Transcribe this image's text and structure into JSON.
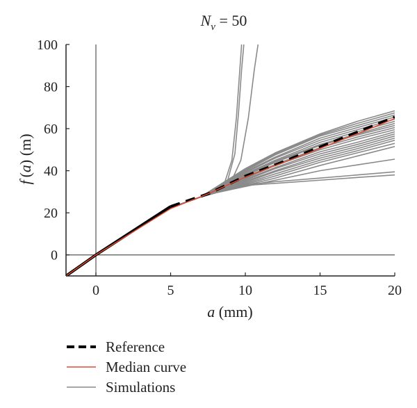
{
  "chart_data": {
    "type": "line",
    "title": {
      "italic_symbol": "N",
      "subscript": "ν",
      "rest": " = 50"
    },
    "xlabel": {
      "italic": "a",
      "rest": " (mm)"
    },
    "ylabel": {
      "italic_f": "f",
      "italic_a": "a",
      "parts": [
        "(",
        ") (m)"
      ]
    },
    "xlim": [
      -2,
      20
    ],
    "ylim": [
      -10,
      100
    ],
    "xticks": [
      0,
      5,
      10,
      15,
      20
    ],
    "yticks": [
      0,
      20,
      40,
      60,
      80,
      100
    ],
    "grid": false,
    "reference_lines": {
      "x": 0,
      "y": 0
    },
    "legend_position": "below",
    "legend": [
      "Reference",
      "Median curve",
      "Simulations"
    ],
    "colors": {
      "reference": "#000000",
      "median": "#e2492f",
      "simulations": "#8a8a8a",
      "axis": "#555555"
    },
    "series": [
      {
        "name": "Reference",
        "style": "dashed",
        "x": [
          -2,
          0,
          5,
          7.5,
          10,
          12.5,
          15,
          17.5,
          20
        ],
        "y": [
          -10,
          0,
          23,
          29,
          37.4,
          44.2,
          51.3,
          58.4,
          65.5
        ]
      },
      {
        "name": "Median curve",
        "style": "solid",
        "x": [
          -2,
          0,
          5,
          7.5,
          10,
          12.5,
          15,
          17.5,
          20
        ],
        "y": [
          -10,
          0,
          22,
          29,
          37,
          43.8,
          50.6,
          57.6,
          64.8
        ]
      }
    ],
    "simulations": [
      {
        "x": [
          -2,
          0,
          5,
          7,
          8,
          9,
          10,
          12,
          15,
          17.5,
          20
        ],
        "y": [
          -10,
          0,
          22.5,
          27.5,
          29.5,
          31.5,
          33,
          34,
          35.5,
          36.8,
          38
        ]
      },
      {
        "x": [
          -2,
          0,
          5,
          7,
          8,
          9,
          10,
          12,
          15,
          17.5,
          20
        ],
        "y": [
          -10,
          0,
          22.5,
          27.5,
          29.5,
          31.5,
          33.2,
          34.8,
          36.5,
          38,
          39.5
        ]
      },
      {
        "x": [
          -2,
          0,
          5,
          7,
          8,
          9,
          10,
          12,
          15,
          17.5,
          20
        ],
        "y": [
          -10,
          0,
          22.5,
          27.5,
          29.5,
          31,
          32.5,
          35.5,
          40,
          42.8,
          45.5
        ]
      },
      {
        "x": [
          -2,
          0,
          5,
          7,
          8,
          9,
          10,
          12,
          15,
          17.5,
          20
        ],
        "y": [
          -10,
          0,
          22.5,
          27.5,
          29.5,
          31,
          33,
          36.5,
          42.5,
          47,
          51.5
        ]
      },
      {
        "x": [
          -2,
          0,
          5,
          7,
          8,
          9,
          10,
          12,
          15,
          17.5,
          20
        ],
        "y": [
          -10,
          0,
          22.5,
          27.5,
          29.5,
          31.2,
          33.5,
          37.5,
          44,
          48.5,
          53
        ]
      },
      {
        "x": [
          -2,
          0,
          5,
          7,
          8,
          9,
          10,
          12,
          15,
          17.5,
          20
        ],
        "y": [
          -10,
          0,
          22.5,
          27.5,
          29.5,
          31.5,
          34,
          38.5,
          45,
          49.5,
          54.5
        ]
      },
      {
        "x": [
          -2,
          0,
          5,
          7,
          8,
          9,
          10,
          12,
          15,
          17.5,
          20
        ],
        "y": [
          -10,
          0,
          22.5,
          27.5,
          29.5,
          31.5,
          34.5,
          39.5,
          46,
          50.5,
          55.5
        ]
      },
      {
        "x": [
          -2,
          0,
          5,
          7,
          8,
          9,
          10,
          12,
          15,
          17.5,
          20
        ],
        "y": [
          -10,
          0,
          22.5,
          27.5,
          29.5,
          32,
          35,
          40,
          47,
          51.5,
          56.5
        ]
      },
      {
        "x": [
          -2,
          0,
          5,
          7,
          8,
          9,
          10,
          12,
          15,
          17.5,
          20
        ],
        "y": [
          -10,
          0,
          22.5,
          27.5,
          29.5,
          32,
          35.5,
          41,
          48,
          52.5,
          57.5
        ]
      },
      {
        "x": [
          -2,
          0,
          5,
          7,
          8,
          9,
          10,
          12,
          15,
          17.5,
          20
        ],
        "y": [
          -10,
          0,
          22.5,
          27.5,
          30,
          32.5,
          36,
          41.5,
          49,
          53.5,
          58.5
        ]
      },
      {
        "x": [
          -2,
          0,
          5,
          7,
          8,
          9,
          10,
          12,
          15,
          17.5,
          20
        ],
        "y": [
          -10,
          0,
          22.5,
          27.5,
          30,
          33,
          36.5,
          42.5,
          50,
          55,
          59.5
        ]
      },
      {
        "x": [
          -2,
          0,
          5,
          7,
          8,
          9,
          10,
          12,
          15,
          17.5,
          20
        ],
        "y": [
          -10,
          0,
          22.5,
          27.5,
          30,
          33.5,
          37,
          43,
          51,
          56,
          60.5
        ]
      },
      {
        "x": [
          -2,
          0,
          5,
          7,
          8,
          9,
          10,
          12,
          15,
          17.5,
          20
        ],
        "y": [
          -10,
          0,
          22.5,
          27.5,
          30.5,
          34,
          37.5,
          44,
          52,
          57,
          61.5
        ]
      },
      {
        "x": [
          -2,
          0,
          5,
          7,
          8,
          9,
          10,
          12,
          15,
          17.5,
          20
        ],
        "y": [
          -10,
          0,
          22.5,
          27.5,
          30.5,
          34,
          38,
          44.5,
          52.5,
          57.5,
          62.5
        ]
      },
      {
        "x": [
          -2,
          0,
          5,
          7,
          8,
          9,
          10,
          12,
          15,
          17.5,
          20
        ],
        "y": [
          -10,
          0,
          22.5,
          27.5,
          30.5,
          34.5,
          38.5,
          45,
          53.5,
          58.5,
          63.5
        ]
      },
      {
        "x": [
          -2,
          0,
          5,
          7,
          8,
          9,
          10,
          12,
          15,
          17.5,
          20
        ],
        "y": [
          -10,
          0,
          22.5,
          27.5,
          31,
          35,
          39,
          46,
          54.5,
          59.5,
          64.5
        ]
      },
      {
        "x": [
          -2,
          0,
          5,
          7,
          8,
          9,
          10,
          12,
          15,
          17.5,
          20
        ],
        "y": [
          -10,
          0,
          22.5,
          27.5,
          31,
          35,
          39.5,
          46.5,
          55.5,
          60.5,
          65.5
        ]
      },
      {
        "x": [
          -2,
          0,
          5,
          7,
          8,
          9,
          10,
          12,
          15,
          17.5,
          20
        ],
        "y": [
          -10,
          0,
          22.5,
          27.5,
          31.5,
          35.5,
          40,
          47.5,
          56.5,
          61.5,
          66.5
        ]
      },
      {
        "x": [
          -2,
          0,
          5,
          7,
          8,
          9,
          10,
          12,
          15,
          17.5,
          20
        ],
        "y": [
          -10,
          0,
          22.5,
          27.5,
          31.5,
          36,
          40.5,
          48,
          57,
          62.5,
          67.5
        ]
      },
      {
        "x": [
          -2,
          0,
          5,
          7,
          8,
          9,
          10,
          12,
          15,
          17.5,
          20
        ],
        "y": [
          -10,
          0,
          22.5,
          27.5,
          32,
          36.5,
          41,
          48.5,
          57.5,
          63.5,
          68.5
        ]
      },
      {
        "x": [
          -2,
          0,
          5,
          7,
          8,
          8.6,
          9.1,
          9.4,
          9.6,
          9.75
        ],
        "y": [
          -10,
          0,
          22.5,
          27.5,
          30,
          34,
          45,
          65,
          85,
          100
        ]
      },
      {
        "x": [
          -2,
          0,
          5,
          7,
          8,
          8.8,
          9.3,
          9.55,
          9.75,
          9.9
        ],
        "y": [
          -10,
          0,
          22.5,
          27.5,
          30,
          35,
          48,
          68,
          88,
          100
        ]
      },
      {
        "x": [
          -2,
          0,
          5,
          7,
          8,
          9,
          9.7,
          10.2,
          10.6,
          10.85
        ],
        "y": [
          -10,
          0,
          22.5,
          27.5,
          30,
          34,
          45,
          65,
          88,
          100
        ]
      }
    ]
  }
}
